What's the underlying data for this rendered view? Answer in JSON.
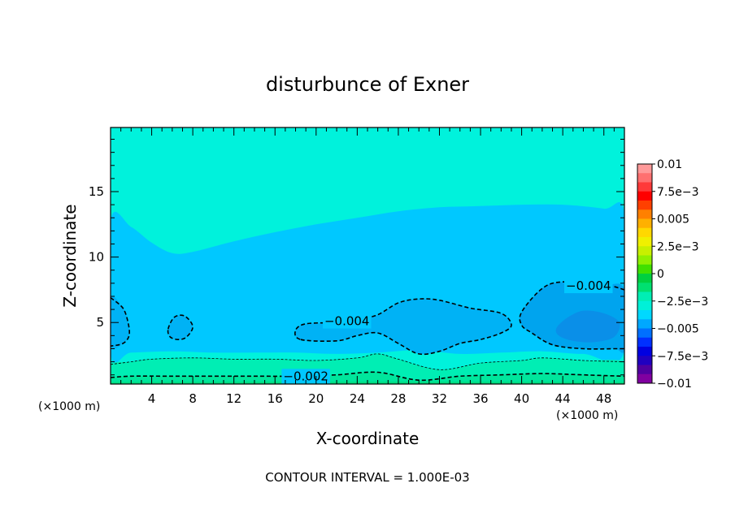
{
  "chart_data": {
    "type": "heatmap",
    "subtype": "filled-contour",
    "title": "disturbunce of Exner",
    "xlabel": "X-coordinate",
    "ylabel": "Z-coordinate",
    "x_unit_left": "(×1000 m)",
    "x_unit_right": "(×1000 m)",
    "xlim": [
      0,
      50
    ],
    "ylim": [
      0.3,
      19.9
    ],
    "x_ticks": [
      4,
      8,
      12,
      16,
      20,
      24,
      28,
      32,
      36,
      40,
      44,
      48
    ],
    "y_ticks": [
      5,
      10,
      15
    ],
    "background_level_color": "#00f2dc",
    "regions": [
      {
        "level": -0.005,
        "color": "#00c8ff",
        "boundary": [
          [
            0,
            12.8
          ],
          [
            2,
            12.3
          ],
          [
            4,
            11.1
          ],
          [
            6,
            10.3
          ],
          [
            8,
            10.4
          ],
          [
            12,
            11.2
          ],
          [
            16,
            11.9
          ],
          [
            20,
            12.5
          ],
          [
            24,
            13.0
          ],
          [
            28,
            13.5
          ],
          [
            32,
            13.8
          ],
          [
            36,
            13.9
          ],
          [
            40,
            14.0
          ],
          [
            44,
            14.0
          ],
          [
            48,
            13.7
          ],
          [
            50,
            13.3
          ],
          [
            50,
            2.8
          ],
          [
            46,
            2.6
          ],
          [
            42,
            2.8
          ],
          [
            38,
            2.7
          ],
          [
            34,
            2.6
          ],
          [
            30,
            2.9
          ],
          [
            26,
            2.7
          ],
          [
            22,
            2.6
          ],
          [
            18,
            2.7
          ],
          [
            14,
            2.7
          ],
          [
            10,
            2.7
          ],
          [
            6,
            2.8
          ],
          [
            2,
            2.7
          ],
          [
            0,
            2.6
          ]
        ]
      },
      {
        "level": -0.0045,
        "color": "#00b2f5",
        "boundary": [
          [
            18.5,
            3.7
          ],
          [
            22,
            3.6
          ],
          [
            24,
            4.0
          ],
          [
            26,
            4.2
          ],
          [
            28,
            3.4
          ],
          [
            30,
            2.6
          ],
          [
            32,
            2.8
          ],
          [
            34,
            3.4
          ],
          [
            36,
            3.7
          ],
          [
            38,
            4.2
          ],
          [
            39,
            4.8
          ],
          [
            38,
            5.7
          ],
          [
            35,
            6.1
          ],
          [
            32,
            6.7
          ],
          [
            30,
            6.8
          ],
          [
            28,
            6.5
          ],
          [
            26,
            5.6
          ],
          [
            24,
            5.2
          ],
          [
            22,
            5.0
          ],
          [
            19,
            4.9
          ],
          [
            18,
            4.4
          ]
        ]
      },
      {
        "level": -0.0045,
        "color": "#00b2f5",
        "boundary": [
          [
            5.6,
            4.5
          ],
          [
            6.2,
            5.4
          ],
          [
            7.2,
            5.5
          ],
          [
            8,
            4.7
          ],
          [
            7.4,
            3.9
          ],
          [
            6.6,
            3.7
          ],
          [
            5.8,
            3.9
          ]
        ]
      },
      {
        "level": -0.0045,
        "color": "#00b2f5",
        "boundary": [
          [
            0,
            6.9
          ],
          [
            1.2,
            6.1
          ],
          [
            1.7,
            5.0
          ],
          [
            1.8,
            4.0
          ],
          [
            1.2,
            3.4
          ],
          [
            0,
            3.2
          ]
        ]
      },
      {
        "level": -0.0048,
        "color": "#00a4ee",
        "boundary": [
          [
            40,
            4.8
          ],
          [
            41,
            4.2
          ],
          [
            43,
            3.3
          ],
          [
            46,
            3.0
          ],
          [
            49,
            3.0
          ],
          [
            50,
            3.0
          ],
          [
            50,
            7.5
          ],
          [
            48,
            7.9
          ],
          [
            44,
            8.1
          ],
          [
            42,
            7.6
          ],
          [
            40,
            5.8
          ]
        ]
      },
      {
        "level": -0.0055,
        "color": "#0a8fe8",
        "boundary": [
          [
            43.4,
            4.6
          ],
          [
            44.5,
            5.4
          ],
          [
            46,
            5.9
          ],
          [
            48,
            5.7
          ],
          [
            49.5,
            5.0
          ],
          [
            49,
            3.9
          ],
          [
            47,
            3.5
          ],
          [
            45,
            3.6
          ],
          [
            43.6,
            4.0
          ]
        ]
      },
      {
        "level": -0.002,
        "color": "#00eeb4",
        "boundary": [
          [
            0,
            0.3
          ],
          [
            50,
            0.3
          ],
          [
            50,
            2.0
          ],
          [
            46,
            2.1
          ],
          [
            42,
            2.3
          ],
          [
            40,
            2.1
          ],
          [
            36,
            1.9
          ],
          [
            32,
            1.4
          ],
          [
            28,
            2.2
          ],
          [
            26,
            2.6
          ],
          [
            24,
            2.3
          ],
          [
            20,
            2.1
          ],
          [
            16,
            2.2
          ],
          [
            12,
            2.2
          ],
          [
            8,
            2.3
          ],
          [
            4,
            2.2
          ],
          [
            2,
            2.0
          ],
          [
            0,
            1.8
          ]
        ]
      },
      {
        "level": -0.0015,
        "color": "#00e69c",
        "boundary": [
          [
            0,
            0.3
          ],
          [
            50,
            0.3
          ],
          [
            50,
            0.9
          ],
          [
            46,
            1.0
          ],
          [
            42,
            1.1
          ],
          [
            38,
            1.0
          ],
          [
            34,
            0.9
          ],
          [
            30,
            0.6
          ],
          [
            26,
            1.2
          ],
          [
            22,
            1.0
          ],
          [
            18,
            0.9
          ],
          [
            14,
            0.9
          ],
          [
            10,
            0.9
          ],
          [
            6,
            0.9
          ],
          [
            2,
            0.9
          ],
          [
            0,
            0.8
          ]
        ]
      },
      {
        "level": -0.001,
        "color": "#00dc80",
        "boundary": [
          [
            0,
            0.3
          ],
          [
            50,
            0.3
          ],
          [
            50,
            0.45
          ],
          [
            0,
            0.45
          ]
        ]
      }
    ],
    "contours": [
      {
        "level": -0.004,
        "label": "-0.004",
        "label_at": [
          23,
          5.1
        ],
        "points": [
          [
            18.5,
            3.7
          ],
          [
            22,
            3.6
          ],
          [
            24,
            4.0
          ],
          [
            26,
            4.2
          ],
          [
            28,
            3.4
          ],
          [
            30,
            2.6
          ],
          [
            32,
            2.8
          ],
          [
            34,
            3.4
          ],
          [
            36,
            3.7
          ],
          [
            38,
            4.2
          ],
          [
            39,
            4.8
          ],
          [
            38,
            5.7
          ],
          [
            35,
            6.1
          ],
          [
            32,
            6.7
          ],
          [
            30,
            6.8
          ],
          [
            28,
            6.5
          ],
          [
            26,
            5.6
          ],
          [
            24,
            5.2
          ],
          [
            22,
            5.0
          ],
          [
            19,
            4.9
          ],
          [
            18,
            4.4
          ],
          [
            18.5,
            3.7
          ]
        ]
      },
      {
        "level": -0.004,
        "label": "",
        "label_at": null,
        "points": [
          [
            5.6,
            4.5
          ],
          [
            6.2,
            5.4
          ],
          [
            7.2,
            5.5
          ],
          [
            8,
            4.7
          ],
          [
            7.4,
            3.9
          ],
          [
            6.6,
            3.7
          ],
          [
            5.8,
            3.9
          ],
          [
            5.6,
            4.5
          ]
        ]
      },
      {
        "level": -0.004,
        "label": "",
        "label_at": null,
        "points": [
          [
            0,
            6.9
          ],
          [
            1.2,
            6.1
          ],
          [
            1.7,
            5.0
          ],
          [
            1.8,
            4.0
          ],
          [
            1.2,
            3.4
          ],
          [
            0,
            3.2
          ]
        ]
      },
      {
        "level": -0.004,
        "label": "-0.004",
        "label_at": [
          46.5,
          7.8
        ],
        "points": [
          [
            50,
            7.5
          ],
          [
            48,
            7.9
          ],
          [
            44,
            8.1
          ],
          [
            42,
            7.6
          ],
          [
            40,
            5.8
          ],
          [
            40,
            4.8
          ],
          [
            41,
            4.2
          ],
          [
            43,
            3.3
          ],
          [
            46,
            3.0
          ],
          [
            49,
            3.0
          ],
          [
            50,
            3.0
          ]
        ]
      },
      {
        "level": -0.002,
        "label": "-0.002",
        "label_at": [
          19,
          0.9
        ],
        "points": [
          [
            0,
            0.8
          ],
          [
            2,
            0.9
          ],
          [
            6,
            0.9
          ],
          [
            10,
            0.9
          ],
          [
            14,
            0.9
          ],
          [
            18,
            0.9
          ],
          [
            22,
            1.0
          ],
          [
            26,
            1.2
          ],
          [
            30,
            0.6
          ],
          [
            34,
            0.9
          ],
          [
            38,
            1.0
          ],
          [
            42,
            1.1
          ],
          [
            46,
            1.0
          ],
          [
            50,
            0.9
          ]
        ]
      }
    ],
    "thin_contours": [
      {
        "level": -0.003,
        "points": [
          [
            0,
            1.8
          ],
          [
            2,
            2.0
          ],
          [
            4,
            2.2
          ],
          [
            8,
            2.3
          ],
          [
            12,
            2.2
          ],
          [
            16,
            2.2
          ],
          [
            20,
            2.1
          ],
          [
            24,
            2.3
          ],
          [
            26,
            2.6
          ],
          [
            28,
            2.2
          ],
          [
            32,
            1.4
          ],
          [
            36,
            1.9
          ],
          [
            40,
            2.1
          ],
          [
            42,
            2.3
          ],
          [
            46,
            2.1
          ],
          [
            50,
            2.0
          ]
        ]
      }
    ],
    "colorbar": {
      "tick_labels": [
        "0.01",
        "7.5e-3",
        "0.005",
        "2.5e-3",
        "0",
        "-2.5e-3",
        "-0.005",
        "-7.5e-3",
        "-0.01"
      ],
      "tick_values": [
        0.01,
        0.0075,
        0.005,
        0.0025,
        0,
        -0.0025,
        -0.005,
        -0.0075,
        -0.01
      ],
      "range": [
        -0.01,
        0.01
      ],
      "colors_top_to_bottom": [
        "#ff9a9a",
        "#ff7070",
        "#ff3a3a",
        "#ff0000",
        "#ff4000",
        "#ff8000",
        "#ffb000",
        "#ffd800",
        "#f0f000",
        "#c8f000",
        "#90f000",
        "#40e000",
        "#00d040",
        "#00e070",
        "#00eeb4",
        "#00f0d8",
        "#00d8ff",
        "#00a8ff",
        "#0070ff",
        "#0030ff",
        "#0000e0",
        "#2000c0",
        "#5000a0",
        "#8000a0"
      ]
    },
    "footer": "CONTOUR INTERVAL = 1.000E-03"
  }
}
